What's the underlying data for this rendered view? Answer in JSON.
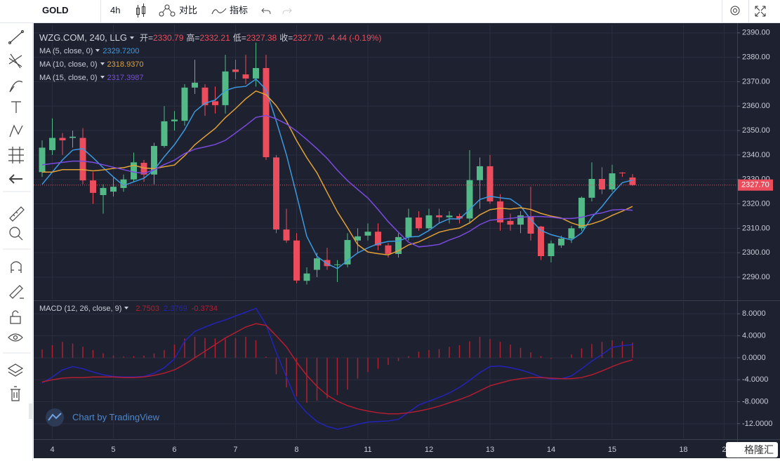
{
  "toolbar": {
    "symbol": "GOLD",
    "interval": "4h",
    "compare": "对比",
    "indicators": "指标"
  },
  "chart_data": [
    {
      "type": "candlestick",
      "title": "WZG.COM, 240, LLG",
      "ohlc_legend": [
        {
          "name": "开=",
          "value": 2330.79
        },
        {
          "name": "高=",
          "value": 2332.21
        },
        {
          "name": "低=",
          "value": 2327.38
        },
        {
          "name": "收=",
          "value": 2327.7,
          "value_label": "2327.70"
        }
      ],
      "change": "-4.44 (-0.19%)",
      "up_color": "#53b987",
      "down_color": "#eb4d5c",
      "open": [
        2333,
        2342,
        2347,
        2347,
        2347,
        2329.6,
        2323.6,
        2325,
        2326.5,
        2330,
        2336.8,
        2332,
        2343.7,
        2353.8,
        2354,
        2367.6,
        2367.6,
        2362,
        2360.4,
        2375,
        2373,
        2371.3,
        2375.6,
        2339,
        2309.5,
        2305,
        2288.5,
        2293,
        2297,
        2295,
        2295.2,
        2305,
        2307,
        2308.6,
        2303,
        2299.5,
        2306.4,
        2314.4,
        2310,
        2315.3,
        2314.5,
        2315,
        2314,
        2329.7,
        2335.4,
        2321,
        2313,
        2311.5,
        2315,
        2310.7,
        2298.6,
        2303,
        2305.8,
        2310,
        2322.5,
        2330.2,
        2325.9,
        2332.8,
        2330.79
      ],
      "high": [
        2346,
        2355,
        2349,
        2350,
        2351,
        2333,
        2328,
        2331,
        2332,
        2341,
        2338,
        2345,
        2360,
        2358,
        2369,
        2379,
        2369,
        2368,
        2381,
        2379,
        2381,
        2386,
        2381,
        2340,
        2318,
        2308,
        2294,
        2300,
        2302,
        2297,
        2308,
        2310,
        2312,
        2312,
        2304,
        2308,
        2318,
        2317,
        2318,
        2318,
        2317,
        2316,
        2342,
        2339,
        2340,
        2324,
        2316,
        2317,
        2327,
        2311,
        2305,
        2307,
        2311,
        2323,
        2337,
        2335,
        2336,
        2333,
        2332.21
      ],
      "low": [
        2331,
        2340,
        2340,
        2343,
        2328,
        2320,
        2316,
        2323,
        2325,
        2329,
        2329,
        2328,
        2343,
        2350,
        2352,
        2365,
        2356,
        2357,
        2357,
        2371,
        2369,
        2368,
        2338,
        2308,
        2304,
        2287.5,
        2287,
        2290,
        2293,
        2288,
        2294,
        2300,
        2305,
        2301,
        2298,
        2298,
        2305,
        2309,
        2309,
        2312,
        2312,
        2312,
        2312,
        2318,
        2320,
        2309,
        2309,
        2308,
        2305,
        2297,
        2296,
        2302,
        2304,
        2309,
        2321,
        2324,
        2325,
        2331,
        2327.38
      ],
      "close": [
        2343,
        2347,
        2346,
        2347.5,
        2329.6,
        2324.5,
        2326.5,
        2327,
        2330,
        2337,
        2332,
        2343.7,
        2353.8,
        2354.5,
        2367.6,
        2369.6,
        2360.4,
        2360.4,
        2374.2,
        2374,
        2371.3,
        2375.6,
        2339.1,
        2309.5,
        2305,
        2288.6,
        2291.5,
        2297.7,
        2294.5,
        2295.2,
        2305.2,
        2306.7,
        2308.6,
        2303,
        2299.5,
        2306.4,
        2314.4,
        2310,
        2315.3,
        2314.5,
        2315.2,
        2314,
        2329.7,
        2335.4,
        2321,
        2312.4,
        2311.5,
        2315.3,
        2307.8,
        2298.6,
        2303.8,
        2305.8,
        2310,
        2322.5,
        2330.2,
        2325.9,
        2332.5,
        2332.5,
        2327.7
      ],
      "series": [
        {
          "name": "MA (5, close, 0)",
          "color": "#3b9ae1",
          "last_value": {
            "value": 2329.72,
            "label": "2329.7200"
          },
          "values": [
            2328,
            2333,
            2338,
            2342,
            2342.6,
            2338.9,
            2334.8,
            2331,
            2327.5,
            2329,
            2330.5,
            2333.9,
            2339.3,
            2344.2,
            2350.3,
            2357.8,
            2361.2,
            2362.5,
            2366.4,
            2367.7,
            2368.1,
            2371.1,
            2366.8,
            2353.9,
            2340.1,
            2323.6,
            2306.7,
            2298.5,
            2295.5,
            2293.5,
            2296.8,
            2299.9,
            2302,
            2303.7,
            2304.6,
            2304.8,
            2306.4,
            2306.7,
            2309.1,
            2312.1,
            2313.9,
            2313.8,
            2317.7,
            2321.8,
            2323.1,
            2322.5,
            2322,
            2319.1,
            2313.6,
            2309.1,
            2307.4,
            2306.3,
            2305.2,
            2308.1,
            2314.5,
            2318.9,
            2324.2,
            2328.7,
            2329.72
          ]
        },
        {
          "name": "MA (10, close, 0)",
          "color": "#e3a235",
          "last_value": {
            "value": 2318.937,
            "label": "2318.9370"
          },
          "values": [
            2333,
            2333,
            2334,
            2334,
            2334,
            2333.5,
            2333.9,
            2334.5,
            2334.8,
            2335.8,
            2334.7,
            2334.4,
            2335.2,
            2335.9,
            2339.7,
            2344.2,
            2347.6,
            2350.9,
            2355.3,
            2359,
            2363,
            2366.2,
            2364.7,
            2360.2,
            2353.9,
            2345.9,
            2338.9,
            2332.7,
            2324.7,
            2316.8,
            2310.2,
            2303.3,
            2300.3,
            2299.6,
            2299.1,
            2300.8,
            2303.2,
            2304.4,
            2306.4,
            2308.4,
            2309.4,
            2310.1,
            2312.2,
            2315.5,
            2317.6,
            2318.2,
            2317.9,
            2318.4,
            2317.7,
            2316.1,
            2315,
            2314.2,
            2312.2,
            2310.9,
            2311.8,
            2313.2,
            2315.3,
            2317,
            2318.937
          ]
        },
        {
          "name": "MA (15, close, 0)",
          "color": "#7a4be0",
          "last_value": {
            "value": 2317.3987,
            "label": "2317.3987"
          },
          "values": [
            2336,
            2336.5,
            2337,
            2337.5,
            2337.5,
            2337,
            2336,
            2335,
            2334,
            2333,
            2332.5,
            2333.9,
            2336.1,
            2337.9,
            2340.6,
            2342.4,
            2343.3,
            2344.3,
            2346,
            2349,
            2352.1,
            2355.4,
            2356.2,
            2354.8,
            2352.7,
            2349.8,
            2346.3,
            2342.6,
            2338.6,
            2333.8,
            2329.5,
            2325.9,
            2322.4,
            2317.7,
            2312.7,
            2308.4,
            2304.3,
            2302.4,
            2302.8,
            2303.4,
            2305.2,
            2306.7,
            2308.8,
            2311.5,
            2313.3,
            2313.7,
            2314.1,
            2314.5,
            2314.8,
            2314.8,
            2314.6,
            2314,
            2314,
            2314.5,
            2315.6,
            2316.3,
            2317.5,
            2317.7,
            2317.3987
          ]
        }
      ],
      "last_price": {
        "value": 2327.7,
        "label": "2327.70"
      },
      "ylim": [
        2280.8,
        2393.4
      ],
      "yticks": [
        {
          "value": 2290,
          "label": "2290.00"
        },
        {
          "value": 2300,
          "label": "2300.00"
        },
        {
          "value": 2310,
          "label": "2310.00"
        },
        {
          "value": 2320,
          "label": "2320.00"
        },
        {
          "value": 2330,
          "label": "2330.00"
        },
        {
          "value": 2340,
          "label": "2340.00"
        },
        {
          "value": 2350,
          "label": "2350.00"
        },
        {
          "value": 2360,
          "label": "2360.00"
        },
        {
          "value": 2370,
          "label": "2370.00"
        },
        {
          "value": 2380,
          "label": "2380.00"
        },
        {
          "value": 2390,
          "label": "2390.00"
        }
      ],
      "xlim": [
        -0.69,
        68.28
      ],
      "xticks": [
        {
          "value": 1,
          "label": "4"
        },
        {
          "value": 7,
          "label": "5"
        },
        {
          "value": 13,
          "label": "6"
        },
        {
          "value": 19,
          "label": "7"
        },
        {
          "value": 25,
          "label": "8"
        },
        {
          "value": 32,
          "label": "11"
        },
        {
          "value": 38,
          "label": "12"
        },
        {
          "value": 44,
          "label": "13"
        },
        {
          "value": 50,
          "label": "14"
        },
        {
          "value": 56,
          "label": "15"
        },
        {
          "value": 63,
          "label": "18"
        },
        {
          "value": 67,
          "label": "2"
        }
      ],
      "grid": true
    },
    {
      "type": "macd",
      "title": "MACD (12, 26, close, 9)",
      "histogram": {
        "color": "#b0202e",
        "last_value": {
          "value": 2.7503,
          "label": "2.7503"
        },
        "values": [
          1.5,
          2.3,
          2.9,
          2.6,
          2,
          1.4,
          0.8,
          0.4,
          0.2,
          0.3,
          0.4,
          0.8,
          1.4,
          2.4,
          3.5,
          3.8,
          3.6,
          3.5,
          3.4,
          3.6,
          3.8,
          3.2,
          0.2,
          -3,
          -5.4,
          -7,
          -8.2,
          -7.8,
          -7.4,
          -6.8,
          -5.8,
          -3.8,
          -2.6,
          -2,
          -1.3,
          -0.6,
          0.3,
          1.1,
          1.4,
          1.6,
          2,
          2.3,
          3,
          3.8,
          3.4,
          2.9,
          2.4,
          1.8,
          1,
          0.3,
          -0.2,
          0,
          0.6,
          1.7,
          2.5,
          2.9,
          3.2,
          3,
          2.7503
        ]
      },
      "macd": {
        "color": "#2323b8",
        "last_value": {
          "value": 2.3769,
          "label": "2.3769"
        },
        "values": [
          -4.6,
          -3.5,
          -2.2,
          -1.6,
          -2,
          -2.6,
          -3.1,
          -3.4,
          -3.5,
          -3.5,
          -3.4,
          -2.8,
          -1.8,
          -0.2,
          3,
          4.8,
          5.6,
          6.3,
          6.9,
          7.6,
          8.3,
          9,
          6,
          1,
          -3.5,
          -7.9,
          -10,
          -11.6,
          -12.5,
          -13,
          -12.6,
          -12.1,
          -11.7,
          -11.6,
          -11.5,
          -11.2,
          -9.9,
          -8.6,
          -7.9,
          -7.2,
          -6.4,
          -5.4,
          -4.1,
          -2.7,
          -1.6,
          -1.5,
          -1.8,
          -2.2,
          -2.8,
          -3.5,
          -3.9,
          -3.8,
          -3.3,
          -2,
          -0.6,
          0.6,
          1.9,
          2.2,
          2.3769
        ]
      },
      "signal": {
        "color": "#b41e30",
        "last_value": {
          "value": -0.3734,
          "label": "-0.3734"
        },
        "values": [
          -4.4,
          -4,
          -3.7,
          -3.6,
          -3.6,
          -3.5,
          -3.5,
          -3.5,
          -3.6,
          -3.6,
          -3.5,
          -3.2,
          -2.8,
          -2.2,
          -1.2,
          0,
          1.2,
          2.4,
          3.6,
          4.6,
          5.6,
          6.2,
          5.9,
          4,
          2,
          -0.8,
          -3.2,
          -5.2,
          -6.8,
          -7.9,
          -8.7,
          -9.3,
          -9.7,
          -10,
          -10.2,
          -10.2,
          -10,
          -9.7,
          -9.3,
          -8.8,
          -8.2,
          -7.6,
          -6.9,
          -6,
          -5.1,
          -4.6,
          -4.1,
          -3.8,
          -3.6,
          -3.6,
          -3.7,
          -3.8,
          -3.8,
          -3.6,
          -3.1,
          -2.4,
          -1.6,
          -0.9,
          -0.3734
        ]
      },
      "ylim": [
        -14.7,
        10.2
      ],
      "yticks": [
        {
          "value": 8,
          "label": "8.0000"
        },
        {
          "value": 4,
          "label": "4.0000"
        },
        {
          "value": 0,
          "label": "0.0000"
        },
        {
          "value": -4,
          "label": "-4.0000"
        },
        {
          "value": -8,
          "label": "-8.0000"
        },
        {
          "value": -12,
          "label": "-12.0000"
        }
      ],
      "grid": true
    }
  ],
  "watermark": "Chart by TradingView",
  "logo": "格隆汇"
}
